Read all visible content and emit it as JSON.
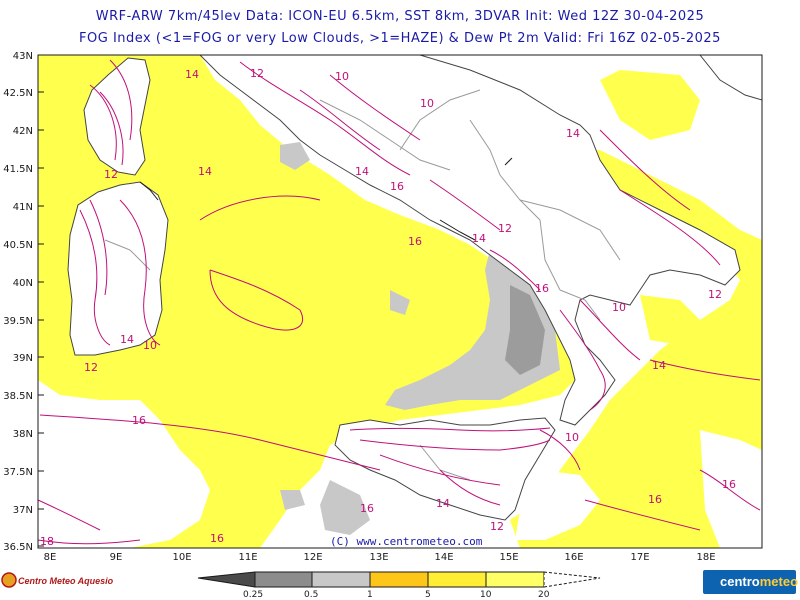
{
  "header": {
    "line1": "WRF-ARW 7km/45lev   Data: ICON-EU 6.5km, SST 8km, 3DVAR   Init: Wed 12Z 30-04-2025",
    "line2": "FOG Index (<1=FOG or very Low Clouds, >1=HAZE) & Dew Pt 2m   Valid: Fri 16Z 02-05-2025"
  },
  "axes": {
    "lat_labels": [
      "43N",
      "42.5N",
      "42N",
      "41.5N",
      "41N",
      "40.5N",
      "40N",
      "39.5N",
      "39N",
      "38.5N",
      "38N",
      "37.5N",
      "37N",
      "36.5N"
    ],
    "lon_labels": [
      "8E",
      "9E",
      "10E",
      "11E",
      "12E",
      "13E",
      "14E",
      "15E",
      "16E",
      "17E",
      "18E"
    ]
  },
  "contour_labels": {
    "l1": "12",
    "l2": "14",
    "l3": "10",
    "l4": "14",
    "l5": "12",
    "l6": "14",
    "l7": "16",
    "l8": "16",
    "l9": "14",
    "l10": "12",
    "l11": "16",
    "l12": "18",
    "l13": "16",
    "l14": "16",
    "l15": "12",
    "l16": "14",
    "l17": "10",
    "l18": "10",
    "l19": "14",
    "l20": "16",
    "l21": "12",
    "l22": "14",
    "l23": "16",
    "l24": "14",
    "l25": "10",
    "l26": "16",
    "l27": "12",
    "l28": "10"
  },
  "copyright": "(C) www.centrometeo.com",
  "logos": {
    "left": "Centro Meteo Aquesio",
    "right_a": "centro",
    "right_b": "meteo"
  },
  "legend": {
    "labels": [
      "0.25",
      "0.5",
      "1",
      "5",
      "10",
      "20"
    ],
    "colors": [
      "#4a4a4a",
      "#8c8c8c",
      "#c8c8c8",
      "#ffc61a",
      "#ffee33",
      "#ffff66"
    ]
  },
  "colors": {
    "land_border": "#9a9a9a",
    "sea_yellow": "#ffff4d",
    "contour": "#c0107a",
    "title": "#1a1aa8"
  }
}
